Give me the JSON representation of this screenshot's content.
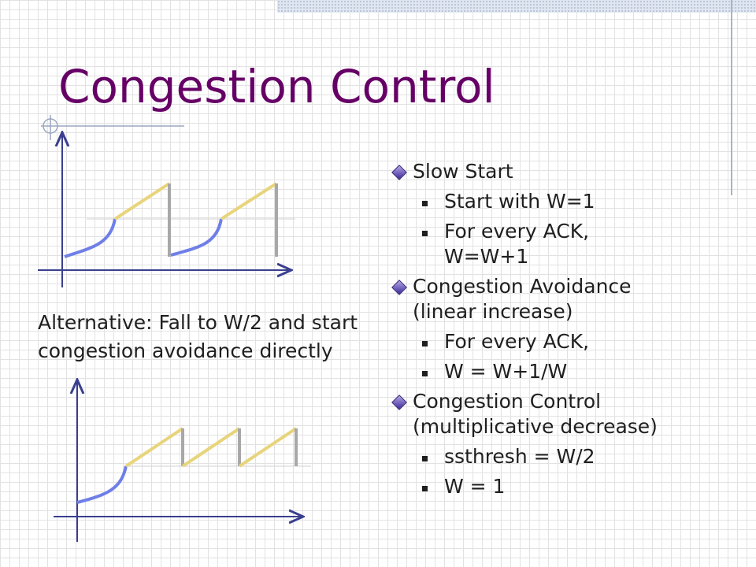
{
  "slide": {
    "title": "Congestion Control",
    "caption_line1": "Alternative: Fall to W/2 and start",
    "caption_line2": "congestion avoidance directly",
    "bullets": {
      "slow_start": {
        "heading": "Slow Start",
        "items": [
          "Start with W=1",
          "For every ACK,",
          "W=W+1"
        ]
      },
      "congestion_avoidance": {
        "heading_line1": "Congestion Avoidance",
        "heading_line2": "(linear increase)",
        "items": [
          "For every ACK,",
          "W = W+1/W"
        ]
      },
      "congestion_control": {
        "heading_line1": "Congestion Control",
        "heading_line2": "(multiplicative decrease)",
        "items": [
          "ssthresh = W/2",
          "W = 1"
        ]
      }
    }
  },
  "colors": {
    "title": "#660066",
    "curve": "#6f7fe8",
    "linear": "#e8d47a",
    "drop": "#a8a8a8",
    "axis": "#3a3f8f"
  }
}
